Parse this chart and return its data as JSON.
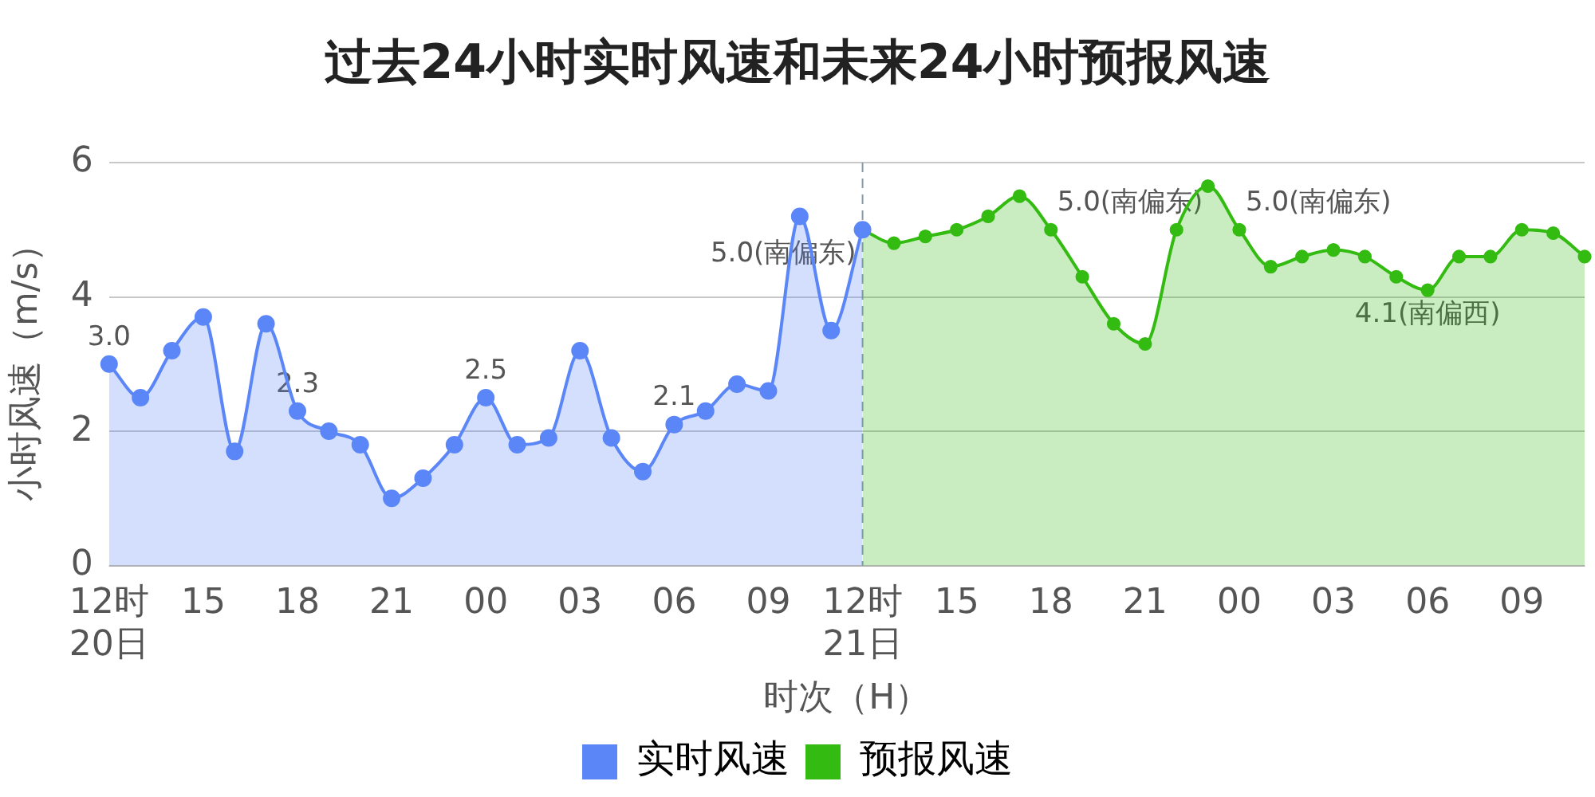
{
  "chart_data": {
    "type": "area",
    "title": "过去24小时实时风速和未来24小时预报风速",
    "xlabel": "时次（H）",
    "ylabel": "小时风速（m/s）",
    "categories": [
      "12时\n20日",
      null,
      null,
      "15",
      null,
      null,
      "18",
      null,
      null,
      "21",
      null,
      null,
      "00",
      null,
      null,
      "03",
      null,
      null,
      "06",
      null,
      null,
      "09",
      null,
      null,
      "12时\n21日",
      null,
      null,
      "15",
      null,
      null,
      "18",
      null,
      null,
      "21",
      null,
      null,
      "00",
      null,
      null,
      "03",
      null,
      null,
      "06",
      null,
      null,
      "09",
      null,
      null
    ],
    "series": [
      {
        "name": "实时风速",
        "color": "#5b86f7",
        "values": [
          3.0,
          2.5,
          3.2,
          3.7,
          1.7,
          3.6,
          2.3,
          2.0,
          1.8,
          1.0,
          1.3,
          1.8,
          2.5,
          1.8,
          1.9,
          3.2,
          1.9,
          1.4,
          2.1,
          2.3,
          2.7,
          2.6,
          5.2,
          3.5,
          5.0,
          null,
          null,
          null,
          null,
          null,
          null,
          null,
          null,
          null,
          null,
          null,
          null,
          null,
          null,
          null,
          null,
          null,
          null,
          null,
          null,
          null,
          null,
          null
        ],
        "value_labels": [
          "3.0",
          null,
          null,
          null,
          null,
          null,
          "2.3",
          null,
          null,
          null,
          null,
          null,
          "2.5",
          null,
          null,
          null,
          null,
          null,
          "2.1",
          null,
          null,
          null,
          null,
          null,
          "5.0(南偏东)",
          null,
          null,
          null,
          null,
          null,
          null,
          null,
          null,
          null,
          null,
          null,
          null,
          null,
          null,
          null,
          null,
          null,
          null,
          null,
          null,
          null,
          null,
          null
        ]
      },
      {
        "name": "预报风速",
        "color": "#33bb11",
        "values": [
          null,
          null,
          null,
          null,
          null,
          null,
          null,
          null,
          null,
          null,
          null,
          null,
          null,
          null,
          null,
          null,
          null,
          null,
          null,
          null,
          null,
          null,
          null,
          null,
          5.0,
          4.8,
          4.9,
          5.0,
          5.2,
          5.5,
          5.0,
          4.3,
          3.6,
          3.3,
          5.0,
          5.65,
          5.0,
          4.45,
          4.6,
          4.7,
          4.6,
          4.3,
          4.1,
          4.6,
          4.6,
          5.0,
          4.95,
          4.6
        ],
        "value_labels": [
          null,
          null,
          null,
          null,
          null,
          null,
          null,
          null,
          null,
          null,
          null,
          null,
          null,
          null,
          null,
          null,
          null,
          null,
          null,
          null,
          null,
          null,
          null,
          null,
          null,
          null,
          null,
          null,
          null,
          null,
          "5.0(南偏东)",
          null,
          null,
          null,
          null,
          null,
          "5.0(南偏东)",
          null,
          null,
          null,
          null,
          null,
          "4.1(南偏西)",
          null,
          null,
          null,
          null,
          null
        ]
      }
    ],
    "ylim": [
      0,
      6
    ],
    "yticks": [
      0,
      2,
      4,
      6
    ],
    "ref_lines": [
      {
        "axis": "x",
        "value": "12时\n21日",
        "color": "#8899aa",
        "line_style": "dashed"
      }
    ],
    "grid": "y",
    "legend": "bottom",
    "marker": "circle",
    "line_style": "solid"
  }
}
